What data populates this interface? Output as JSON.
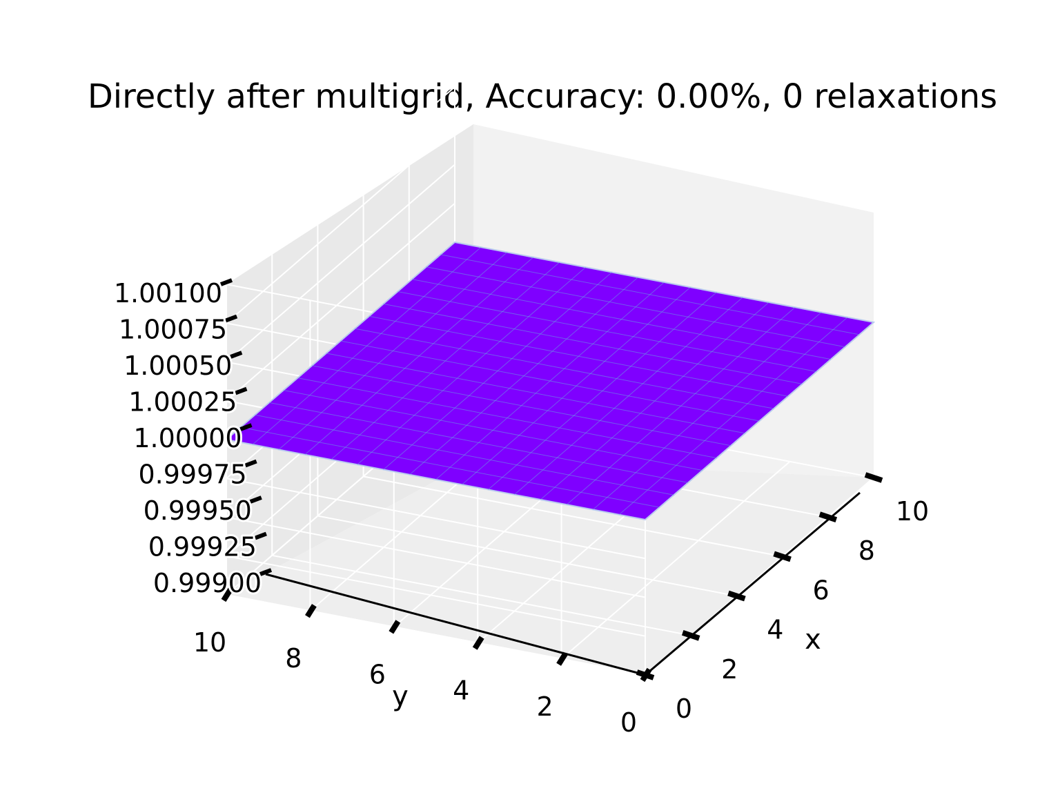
{
  "chart_data": {
    "type": "surface3d",
    "title": "Directly after multigrid, Accuracy: 0.00%, 0 relaxations",
    "xlabel": "x",
    "ylabel": "y",
    "zlabel": "",
    "x_range": [
      0,
      10
    ],
    "y_range": [
      0,
      10
    ],
    "zlim": [
      0.999,
      1.001
    ],
    "x_ticks": [
      "0",
      "2",
      "4",
      "6",
      "8",
      "10"
    ],
    "y_ticks": [
      "0",
      "2",
      "4",
      "6",
      "8",
      "10"
    ],
    "z_ticks": [
      "0.99900",
      "0.99925",
      "0.99950",
      "0.99975",
      "1.00000",
      "1.00025",
      "1.00050",
      "1.00075",
      "1.00100"
    ],
    "grid_cells": 16,
    "surface_value": 1.0,
    "surface_color": "#7f00ff",
    "edge_color": "#6aa3e0",
    "grid": true
  }
}
